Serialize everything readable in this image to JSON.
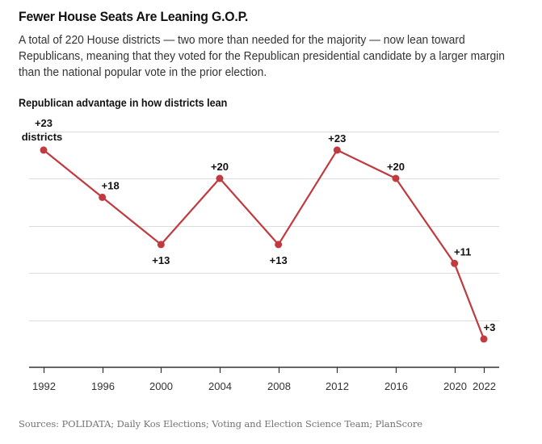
{
  "header": {
    "title": "Fewer House Seats Are Leaning G.O.P.",
    "subtitle": "A total of 220 House districts — two more than needed for the majority — now lean toward Republicans, meaning that they voted for the Republican presidential candidate by a larger margin than the national popular vote in the prior election."
  },
  "footer": {
    "source": "Sources: POLIDATA; Daily Kos Elections; Voting and Election Science Team; PlanScore"
  },
  "colors": {
    "series": "#bf3b3f"
  },
  "chart_data": {
    "type": "line",
    "title": "Republican advantage in how districts lean",
    "xlabel": "",
    "ylabel": "",
    "x": [
      1992,
      1996,
      2000,
      2004,
      2008,
      2012,
      2016,
      2020,
      2022
    ],
    "xtick_labels": [
      "1992",
      "1996",
      "2000",
      "2004",
      "2008",
      "2012",
      "2016",
      "2020",
      "2022"
    ],
    "series": [
      {
        "name": "Republican advantage (districts)",
        "values": [
          23,
          18,
          13,
          20,
          13,
          23,
          20,
          11,
          3
        ],
        "labels": [
          "+23",
          "+18",
          "+13",
          "+20",
          "+13",
          "+23",
          "+20",
          "+11",
          "+3"
        ],
        "label_positions": [
          "above",
          "above-right",
          "below",
          "above",
          "below",
          "above",
          "above",
          "above-right",
          "above-right"
        ]
      }
    ],
    "first_label_suffix": "districts",
    "xlim": [
      1992,
      2022
    ],
    "ylim": [
      0,
      25
    ],
    "yticks": [
      0,
      5,
      10,
      15,
      20,
      25
    ],
    "grid": true,
    "legend": "none"
  }
}
